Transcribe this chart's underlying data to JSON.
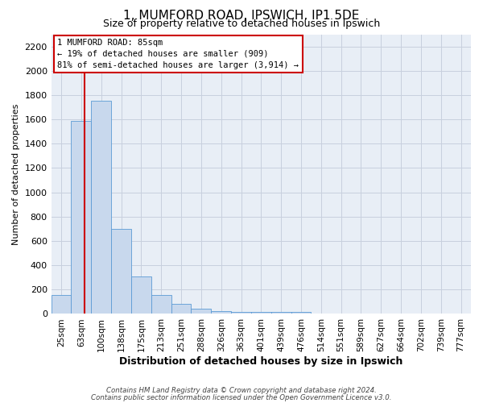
{
  "title1": "1, MUMFORD ROAD, IPSWICH, IP1 5DE",
  "title2": "Size of property relative to detached houses in Ipswich",
  "xlabel": "Distribution of detached houses by size in Ipswich",
  "ylabel": "Number of detached properties",
  "bar_color": "#c8d8ed",
  "bar_edge_color": "#5b9bd5",
  "bar_edge_width": 0.6,
  "grid_color": "#c8d0de",
  "bg_color": "#e8eef6",
  "categories": [
    "25sqm",
    "63sqm",
    "100sqm",
    "138sqm",
    "175sqm",
    "213sqm",
    "251sqm",
    "288sqm",
    "326sqm",
    "363sqm",
    "401sqm",
    "439sqm",
    "476sqm",
    "514sqm",
    "551sqm",
    "589sqm",
    "627sqm",
    "664sqm",
    "702sqm",
    "739sqm",
    "777sqm"
  ],
  "values": [
    155,
    1590,
    1750,
    700,
    310,
    155,
    80,
    40,
    20,
    15,
    15,
    15,
    15,
    0,
    0,
    0,
    0,
    0,
    0,
    0,
    0
  ],
  "ylim": [
    0,
    2300
  ],
  "yticks": [
    0,
    200,
    400,
    600,
    800,
    1000,
    1200,
    1400,
    1600,
    1800,
    2000,
    2200
  ],
  "property_line_x": 1.18,
  "property_line_color": "#cc0000",
  "annotation_line1": "1 MUMFORD ROAD: 85sqm",
  "annotation_line2": "← 19% of detached houses are smaller (909)",
  "annotation_line3": "81% of semi-detached houses are larger (3,914) →",
  "footer1": "Contains HM Land Registry data © Crown copyright and database right 2024.",
  "footer2": "Contains public sector information licensed under the Open Government Licence v3.0.",
  "title1_fontsize": 11,
  "title2_fontsize": 9,
  "ylabel_fontsize": 8,
  "xlabel_fontsize": 9,
  "ytick_fontsize": 8,
  "xtick_fontsize": 7.5
}
